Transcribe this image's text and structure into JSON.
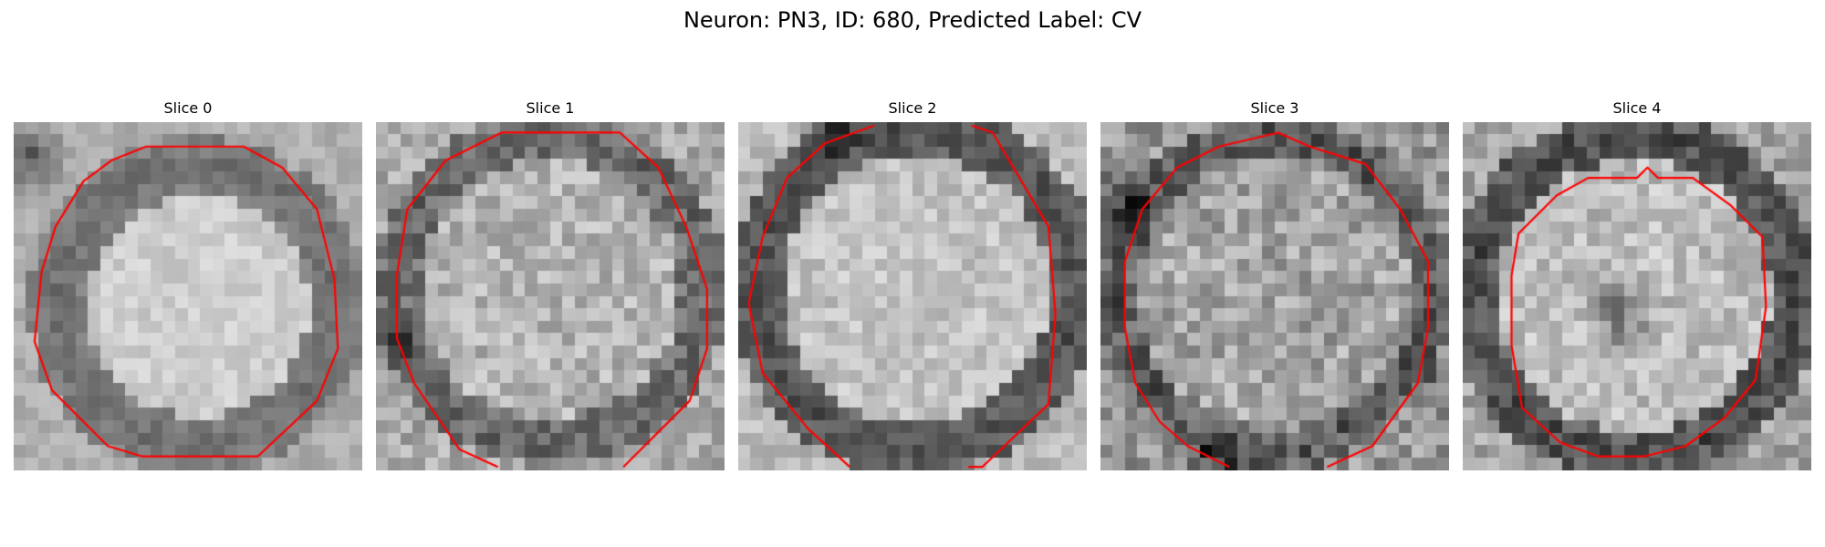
{
  "figure": {
    "title": "Neuron: PN3, ID: 680, Predicted Label: CV"
  },
  "slices": [
    {
      "label": "Slice 0"
    },
    {
      "label": "Slice 1"
    },
    {
      "label": "Slice 2"
    },
    {
      "label": "Slice 3"
    },
    {
      "label": "Slice 4"
    }
  ],
  "colors": {
    "contour": "#ff0000",
    "background": "#ffffff"
  }
}
